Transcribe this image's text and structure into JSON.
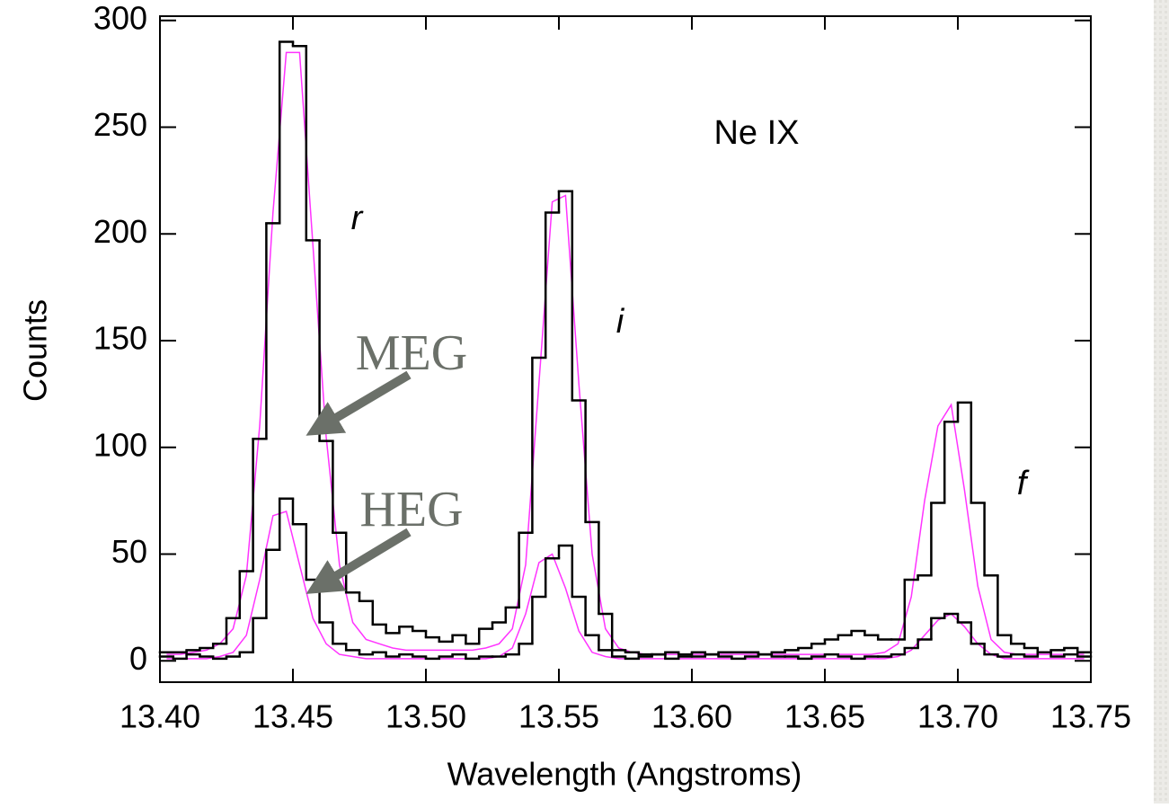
{
  "chart_data": {
    "type": "histogram",
    "xlabel": "Wavelength (Angstroms)",
    "ylabel": "Counts",
    "annotations": [
      "Ne IX",
      "r",
      "i",
      "f"
    ],
    "xlim": [
      13.4,
      13.75
    ],
    "ylim": [
      -10,
      302
    ],
    "xticks": [
      {
        "value": 13.4,
        "label": "13.40"
      },
      13.45,
      {
        "value": 13.5,
        "label": "13.50"
      },
      13.55,
      {
        "value": 13.6,
        "label": "13.60"
      },
      13.65,
      {
        "value": 13.7,
        "label": "13.70"
      },
      13.75
    ],
    "yticks": [
      0,
      50,
      100,
      150,
      200,
      250,
      300
    ],
    "bins": [
      13.4,
      13.405,
      13.41,
      13.415,
      13.42,
      13.425,
      13.43,
      13.435,
      13.44,
      13.445,
      13.45,
      13.455,
      13.46,
      13.465,
      13.47,
      13.475,
      13.48,
      13.485,
      13.49,
      13.495,
      13.5,
      13.505,
      13.51,
      13.515,
      13.52,
      13.525,
      13.53,
      13.535,
      13.54,
      13.545,
      13.55,
      13.555,
      13.56,
      13.565,
      13.57,
      13.575,
      13.58,
      13.585,
      13.59,
      13.595,
      13.6,
      13.605,
      13.61,
      13.615,
      13.62,
      13.625,
      13.63,
      13.635,
      13.64,
      13.645,
      13.65,
      13.655,
      13.66,
      13.665,
      13.67,
      13.675,
      13.68,
      13.685,
      13.69,
      13.695,
      13.7,
      13.705,
      13.71,
      13.715,
      13.72,
      13.725,
      13.73,
      13.735,
      13.74,
      13.745,
      13.75
    ],
    "x": [
      13.4025,
      13.4075,
      13.4125,
      13.4175,
      13.4225,
      13.4275,
      13.4325,
      13.4375,
      13.4425,
      13.4475,
      13.4525,
      13.4575,
      13.4625,
      13.4675,
      13.4725,
      13.4775,
      13.4825,
      13.4875,
      13.4925,
      13.4975,
      13.5025,
      13.5075,
      13.5125,
      13.5175,
      13.5225,
      13.5275,
      13.5325,
      13.5375,
      13.5425,
      13.5475,
      13.5525,
      13.5575,
      13.5625,
      13.5675,
      13.5725,
      13.5775,
      13.5825,
      13.5875,
      13.5925,
      13.5975,
      13.6025,
      13.6075,
      13.6125,
      13.6175,
      13.6225,
      13.6275,
      13.6325,
      13.6375,
      13.6425,
      13.6475,
      13.6525,
      13.6575,
      13.6625,
      13.6675,
      13.6725,
      13.6775,
      13.6825,
      13.6875,
      13.6925,
      13.6975,
      13.7025,
      13.7075,
      13.7125,
      13.7175,
      13.7225,
      13.7275,
      13.7325,
      13.7375,
      13.7425,
      13.7475
    ],
    "series": [
      {
        "name": "MEG",
        "type": "step",
        "color": "#000000",
        "values": [
          4,
          4,
          5,
          6,
          8,
          20,
          42,
          104,
          205,
          290,
          288,
          197,
          103,
          60,
          32,
          28,
          17,
          13,
          16,
          14,
          11,
          9,
          12,
          8,
          15,
          18,
          25,
          60,
          142,
          210,
          220,
          122,
          65,
          22,
          5,
          4,
          3,
          3,
          4,
          3,
          4,
          3,
          4,
          4,
          4,
          3,
          4,
          5,
          6,
          8,
          10,
          12,
          14,
          12,
          10,
          10,
          38,
          40,
          74,
          112,
          121,
          74,
          40,
          12,
          8,
          6,
          4,
          5,
          6,
          4
        ]
      },
      {
        "name": "HEG",
        "type": "step",
        "color": "#000000",
        "values": [
          2,
          1,
          3,
          2,
          1,
          2,
          4,
          20,
          52,
          76,
          64,
          38,
          18,
          8,
          5,
          3,
          4,
          2,
          3,
          2,
          1,
          2,
          3,
          1,
          2,
          2,
          3,
          8,
          30,
          48,
          54,
          30,
          12,
          5,
          2,
          1,
          2,
          3,
          1,
          2,
          2,
          3,
          2,
          1,
          2,
          3,
          2,
          2,
          1,
          2,
          3,
          2,
          1,
          2,
          2,
          3,
          6,
          10,
          20,
          22,
          18,
          8,
          3,
          2,
          3,
          2,
          4,
          2,
          3,
          2
        ]
      },
      {
        "type": "line",
        "color": "#ff33ff",
        "values": [
          3,
          3,
          4,
          5,
          8,
          15,
          40,
          110,
          210,
          285,
          285,
          195,
          105,
          45,
          18,
          10,
          8,
          6,
          5,
          5,
          5,
          5,
          5,
          5,
          6,
          8,
          15,
          45,
          130,
          215,
          218,
          130,
          50,
          15,
          6,
          4,
          3,
          3,
          3,
          3,
          3,
          3,
          3,
          3,
          3,
          3,
          3,
          3,
          3,
          3,
          3,
          3,
          3,
          3,
          4,
          8,
          30,
          75,
          110,
          120,
          80,
          35,
          10,
          4,
          3,
          3,
          3,
          3,
          3,
          3
        ]
      },
      {
        "type": "line",
        "color": "#ff33ff",
        "values": [
          1,
          1,
          1,
          1,
          2,
          4,
          12,
          38,
          68,
          70,
          45,
          20,
          8,
          3,
          2,
          1,
          1,
          1,
          1,
          1,
          1,
          1,
          1,
          1,
          1,
          2,
          6,
          22,
          46,
          50,
          34,
          14,
          4,
          2,
          1,
          1,
          1,
          1,
          1,
          1,
          1,
          1,
          1,
          1,
          1,
          1,
          1,
          1,
          1,
          1,
          1,
          1,
          1,
          1,
          1,
          2,
          5,
          12,
          19,
          22,
          16,
          8,
          3,
          1,
          1,
          1,
          1,
          1,
          1,
          1
        ]
      }
    ]
  }
}
